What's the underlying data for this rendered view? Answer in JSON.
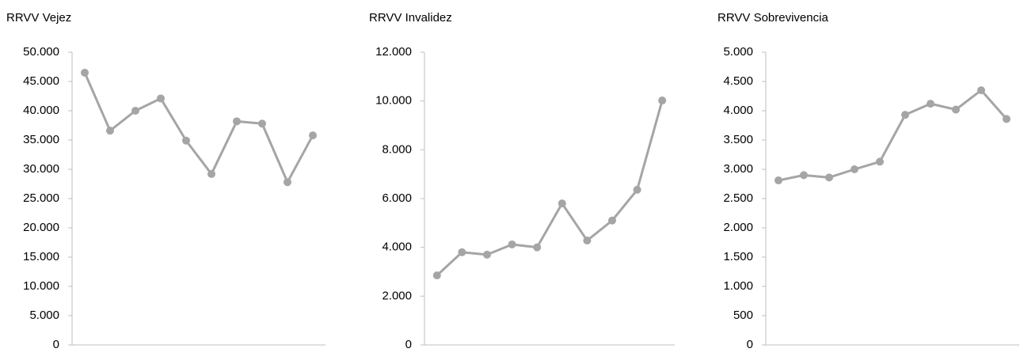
{
  "chart_data": [
    {
      "type": "line",
      "title": "RRVV Vejez",
      "categories": [
        null,
        null,
        null,
        null,
        null,
        null,
        null,
        null,
        null,
        null
      ],
      "series": [
        {
          "name": "RRVV Vejez",
          "color": "#a5a5a5",
          "values": [
            46500,
            36600,
            40000,
            42100,
            34900,
            29200,
            38200,
            37800,
            27800,
            35800
          ]
        }
      ],
      "ylim": [
        0,
        50000
      ],
      "yticks": [
        0,
        {
          "value": 5000,
          "label": "5.000"
        },
        {
          "value": 10000,
          "label": "10.000"
        },
        {
          "value": 15000,
          "label": "15.000"
        },
        {
          "value": 20000,
          "label": "20.000"
        },
        {
          "value": 25000,
          "label": "25.000"
        },
        {
          "value": 30000,
          "label": "30.000"
        },
        {
          "value": 35000,
          "label": "35.000"
        },
        {
          "value": 40000,
          "label": "40.000"
        },
        {
          "value": 45000,
          "label": "45.000"
        },
        {
          "value": 50000,
          "label": "50.000"
        }
      ],
      "grid": false
    },
    {
      "type": "line",
      "title": "RRVV Invalidez",
      "categories": [
        null,
        null,
        null,
        null,
        null,
        null,
        null,
        null,
        null,
        null
      ],
      "series": [
        {
          "name": "RRVV Invalidez",
          "color": "#a5a5a5",
          "values": [
            2850,
            3800,
            3700,
            4120,
            4000,
            5800,
            4280,
            5100,
            6360,
            10020
          ]
        }
      ],
      "ylim": [
        0,
        12000
      ],
      "yticks": [
        0,
        {
          "value": 2000,
          "label": "2.000"
        },
        {
          "value": 4000,
          "label": "4.000"
        },
        {
          "value": 6000,
          "label": "6.000"
        },
        {
          "value": 8000,
          "label": "8.000"
        },
        {
          "value": 10000,
          "label": "10.000"
        },
        {
          "value": 12000,
          "label": "12.000"
        }
      ],
      "grid": false
    },
    {
      "type": "line",
      "title": "RRVV Sobrevivencia",
      "categories": [
        null,
        null,
        null,
        null,
        null,
        null,
        null,
        null,
        null,
        null
      ],
      "series": [
        {
          "name": "RRVV Sobrevivencia",
          "color": "#a5a5a5",
          "values": [
            2810,
            2900,
            2860,
            3000,
            3130,
            3930,
            4120,
            4020,
            4350,
            3860
          ]
        }
      ],
      "ylim": [
        0,
        5000
      ],
      "yticks": [
        0,
        500,
        {
          "value": 1000,
          "label": "1.000"
        },
        {
          "value": 1500,
          "label": "1.500"
        },
        {
          "value": 2000,
          "label": "2.000"
        },
        {
          "value": 2500,
          "label": "2.500"
        },
        {
          "value": 3000,
          "label": "3.000"
        },
        {
          "value": 3500,
          "label": "3.500"
        },
        {
          "value": 4000,
          "label": "4.000"
        },
        {
          "value": 4500,
          "label": "4.500"
        },
        {
          "value": 5000,
          "label": "5.000"
        }
      ],
      "grid": false
    }
  ]
}
